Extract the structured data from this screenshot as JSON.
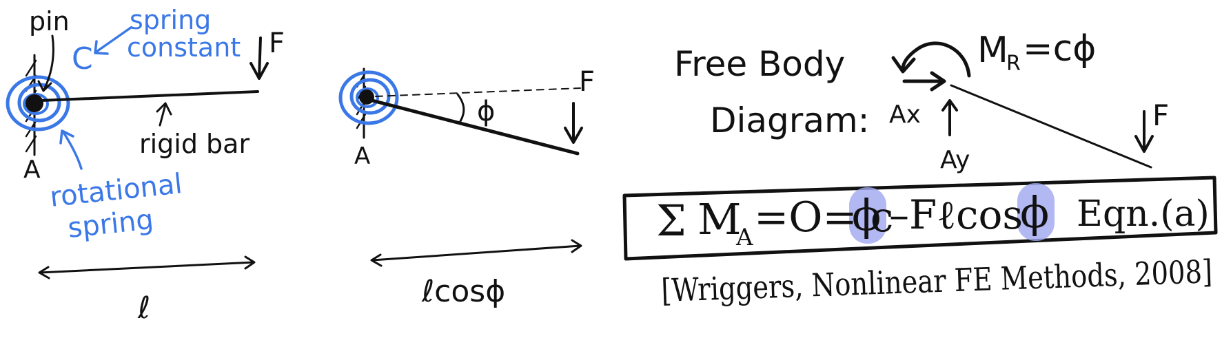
{
  "colors": {
    "ink": "#111111",
    "spring": "#3b78e7",
    "highlight": "#9fa6ee"
  },
  "fig1": {
    "pin": "pin",
    "c": "C",
    "spring_constant_1": "spring",
    "spring_constant_2": "constant",
    "force": "F",
    "rigid_bar": "rigid bar",
    "support": "A",
    "rotational_1": "rotational",
    "rotational_2": "spring",
    "length": "ℓ"
  },
  "fig2": {
    "force": "F",
    "angle": "ϕ",
    "support": "A",
    "projected_length": "ℓcosϕ"
  },
  "fbd": {
    "title_1": "Free Body",
    "title_2": "Diagram:",
    "moment_label": "M",
    "moment_sub": "R",
    "moment_rhs": "=cϕ",
    "ax_label": "Ax",
    "ay_label": "Ay",
    "force": "F"
  },
  "equation": {
    "sigma": "Σ",
    "lhs_m": "M",
    "lhs_sub": "A",
    "eq_mid": "=O= c",
    "phi_1": "ϕ",
    "minus_f": "–Fℓcos",
    "phi_2": "ϕ",
    "eqn_tag": "Eqn.(a)"
  },
  "citation": "[Wriggers, Nonlinear FE Methods, 2008]"
}
